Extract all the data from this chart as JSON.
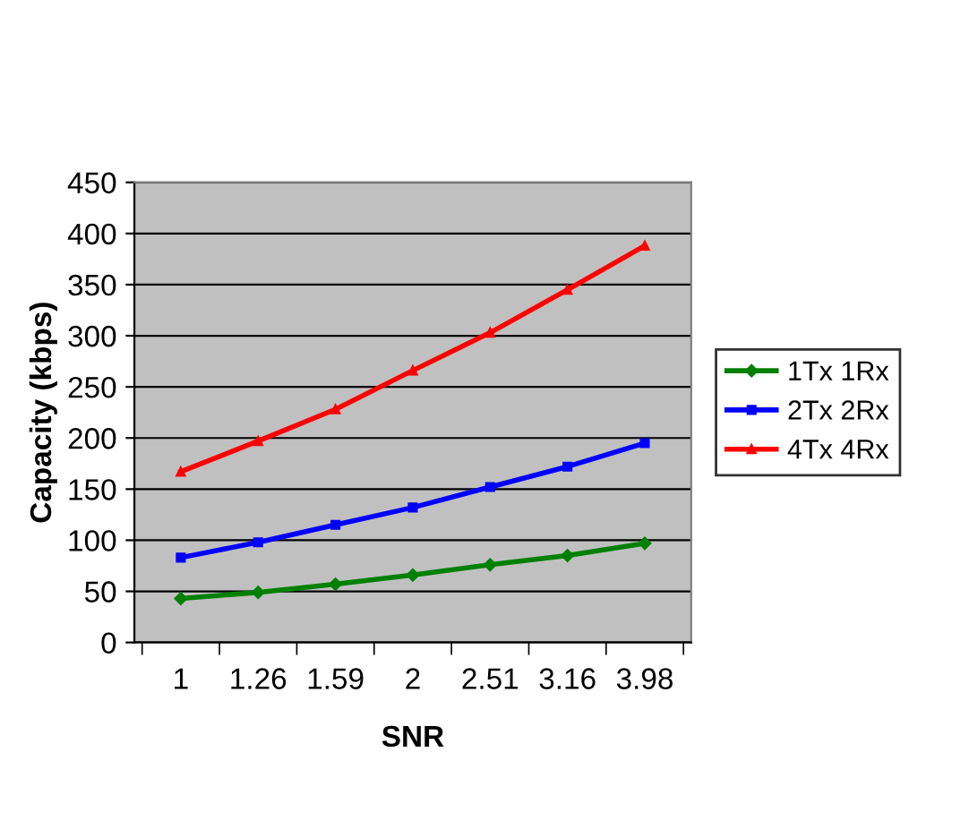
{
  "chart_data": {
    "type": "line",
    "xlabel": "SNR",
    "ylabel": "Capacity (kbps)",
    "categories": [
      "1",
      "1.26",
      "1.59",
      "2",
      "2.51",
      "3.16",
      "3.98"
    ],
    "series": [
      {
        "name": "1Tx 1Rx",
        "color": "#008000",
        "marker": "diamond",
        "values": [
          43,
          49,
          57,
          66,
          76,
          85,
          97
        ]
      },
      {
        "name": "2Tx 2Rx",
        "color": "#0000ff",
        "marker": "square",
        "values": [
          83,
          98,
          115,
          132,
          152,
          172,
          195
        ]
      },
      {
        "name": "4Tx 4Rx",
        "color": "#ff0000",
        "marker": "triangle",
        "values": [
          167,
          197,
          228,
          266,
          303,
          345,
          388
        ]
      }
    ],
    "ylim": [
      0,
      450
    ],
    "yticks": [
      0,
      50,
      100,
      150,
      200,
      250,
      300,
      350,
      400,
      450
    ],
    "grid": "y",
    "legend": "right",
    "line_style": "solid"
  }
}
